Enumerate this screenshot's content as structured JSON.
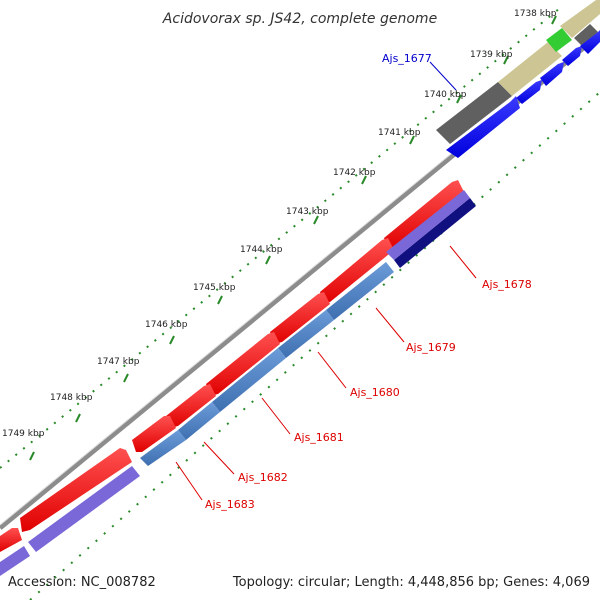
{
  "title": "Acidovorax sp. JS42, complete genome",
  "footer": {
    "accession": "Accession: NC_008782",
    "summary": "Topology: circular; Length: 4,448,856 bp; Genes: 4,069"
  },
  "ticks": [
    "1738 kbp",
    "1739 kbp",
    "1740 kbp",
    "1741 kbp",
    "1742 kbp",
    "1743 kbp",
    "1744 kbp",
    "1745 kbp",
    "1746 kbp",
    "1747 kbp",
    "1748 kbp",
    "1749 kbp"
  ],
  "genes": [
    {
      "label": "Ajs_1677",
      "color": "#0000cc"
    },
    {
      "label": "Ajs_1678",
      "color": "#dd0000"
    },
    {
      "label": "Ajs_1679",
      "color": "#dd0000"
    },
    {
      "label": "Ajs_1680",
      "color": "#dd0000"
    },
    {
      "label": "Ajs_1681",
      "color": "#dd0000"
    },
    {
      "label": "Ajs_1682",
      "color": "#dd0000"
    },
    {
      "label": "Ajs_1683",
      "color": "#dd0000"
    }
  ],
  "colors": {
    "backbone": "#8c8c8c",
    "forward_cds": "#ff1a1a",
    "reverse_cds": "#0000ff",
    "track_red": "#4f86c8",
    "track_purple": "#7b68d8",
    "track_navy": "#101080",
    "track_gray": "#606060",
    "track_khaki": "#c8c088",
    "track_green": "#33cc33",
    "tick_marks": "#2a8a2a"
  }
}
